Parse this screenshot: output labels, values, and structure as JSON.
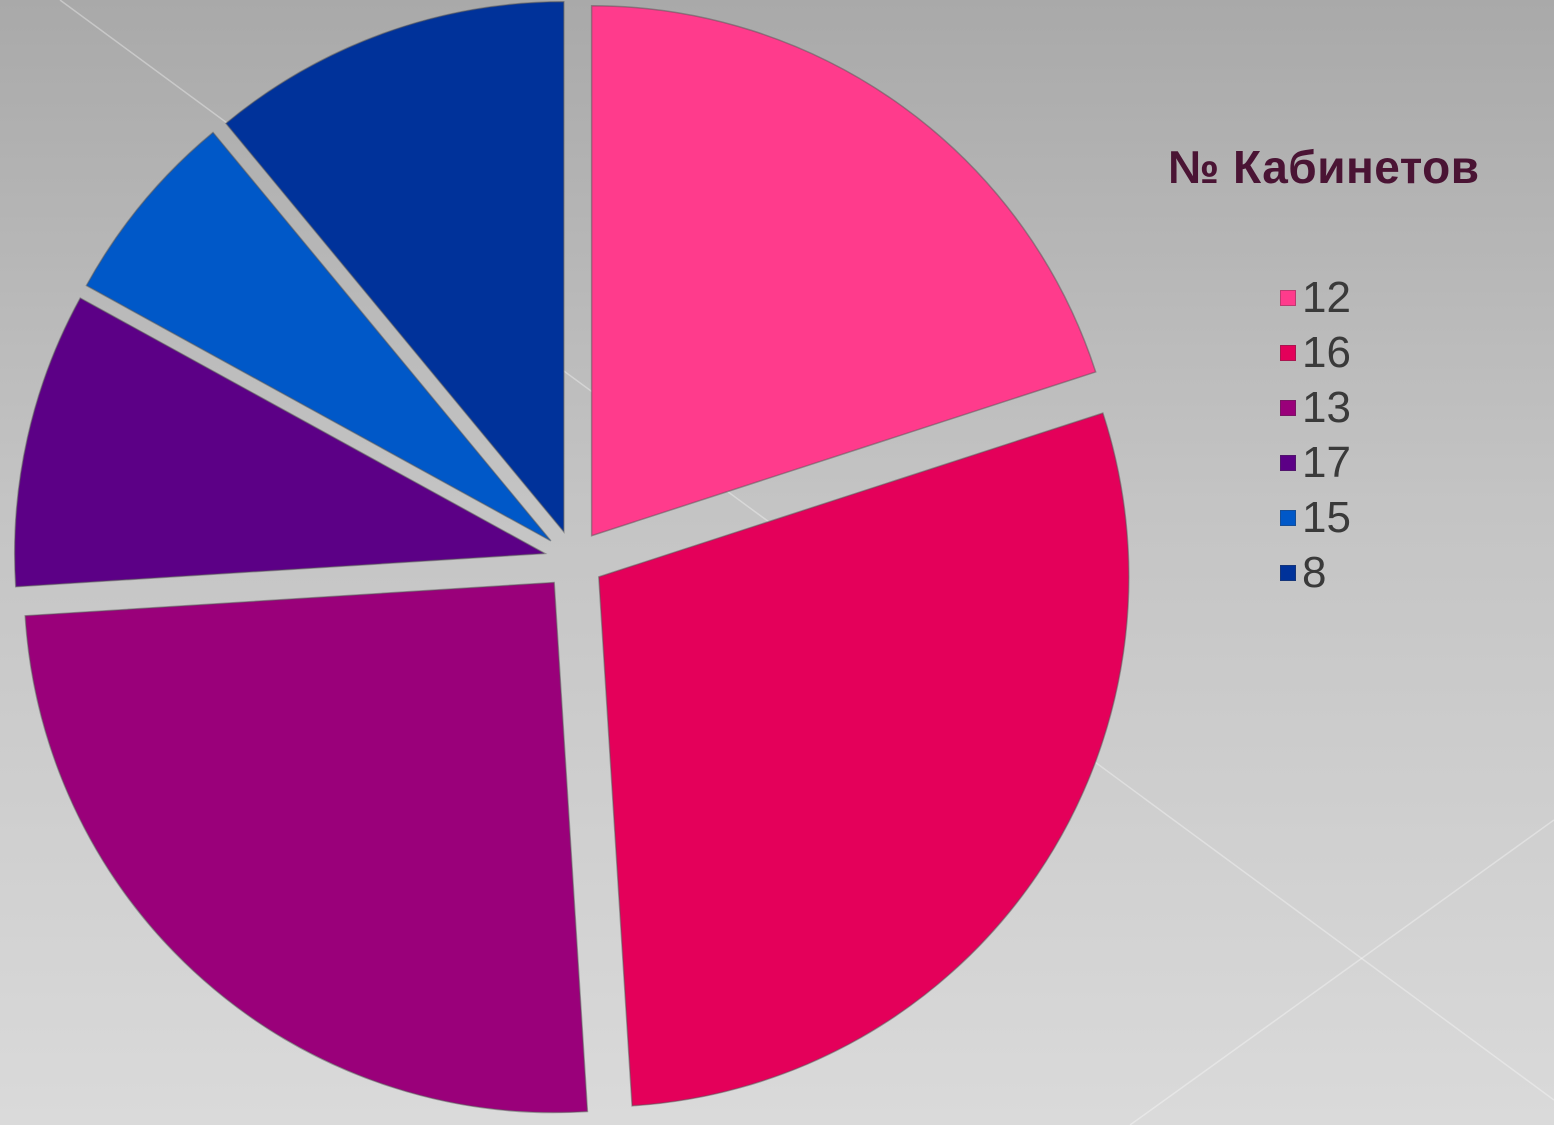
{
  "chart_data": {
    "type": "pie",
    "title": "№ Кабинетов",
    "exploded": true,
    "start_angle_deg": 90,
    "direction": "clockwise",
    "legend_position": "right",
    "categories": [
      "12",
      "16",
      "13",
      "17",
      "15",
      "8"
    ],
    "values": [
      20,
      29,
      25,
      9,
      6,
      11
    ],
    "colors": [
      "#ff3b8c",
      "#e4005a",
      "#9a007a",
      "#5c0086",
      "#0058c8",
      "#00329a"
    ]
  }
}
